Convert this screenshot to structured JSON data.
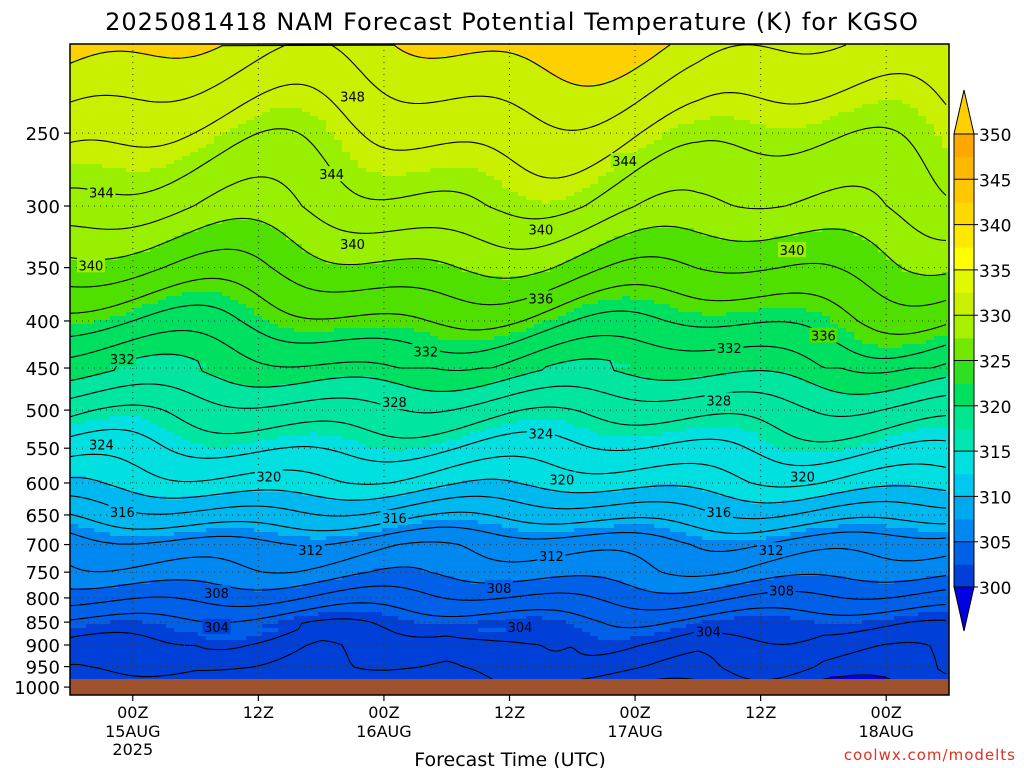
{
  "chart_data": {
    "type": "heatmap",
    "title": "2025081418 NAM Forecast Potential Temperature (K) for KGSO",
    "xlabel": "Forecast Time (UTC)",
    "ylabel": "",
    "x_ticks": [
      {
        "hour": 6,
        "label": "00Z",
        "sub": [
          "15AUG",
          "2025"
        ]
      },
      {
        "hour": 18,
        "label": "12Z",
        "sub": []
      },
      {
        "hour": 30,
        "label": "00Z",
        "sub": [
          "16AUG"
        ]
      },
      {
        "hour": 42,
        "label": "12Z",
        "sub": []
      },
      {
        "hour": 54,
        "label": "00Z",
        "sub": [
          "17AUG"
        ]
      },
      {
        "hour": 66,
        "label": "12Z",
        "sub": []
      },
      {
        "hour": 78,
        "label": "00Z",
        "sub": [
          "18AUG"
        ]
      }
    ],
    "x_range_hours": [
      0,
      84
    ],
    "y_axis": {
      "scale": "log",
      "unit": "hPa",
      "ticks": [
        250,
        300,
        350,
        400,
        450,
        500,
        550,
        600,
        650,
        700,
        750,
        800,
        850,
        900,
        950,
        1000
      ],
      "range": [
        200,
        1020
      ]
    },
    "surface_pressure_hpa": 980,
    "colorbar": {
      "levels": [
        "300",
        "305",
        "310",
        "315",
        "320",
        "325",
        "330",
        "335",
        "340",
        "345",
        "350"
      ],
      "colors": [
        "#0000e0",
        "#0040d8",
        "#0060e8",
        "#0088f0",
        "#00b8f0",
        "#00e0e0",
        "#00e6a0",
        "#00e060",
        "#50e000",
        "#98f000",
        "#c8f000",
        "#ffff00",
        "#ffd000"
      ],
      "extend": "both"
    },
    "contour_interval": 2,
    "profile_by_pressure": [
      {
        "p": 200,
        "theta": 350
      },
      {
        "p": 250,
        "theta": 346
      },
      {
        "p": 300,
        "theta": 343
      },
      {
        "p": 350,
        "theta": 339
      },
      {
        "p": 400,
        "theta": 335
      },
      {
        "p": 450,
        "theta": 331
      },
      {
        "p": 500,
        "theta": 327
      },
      {
        "p": 550,
        "theta": 324
      },
      {
        "p": 600,
        "theta": 321
      },
      {
        "p": 650,
        "theta": 317
      },
      {
        "p": 700,
        "theta": 313
      },
      {
        "p": 750,
        "theta": 311
      },
      {
        "p": 800,
        "theta": 308
      },
      {
        "p": 850,
        "theta": 305
      },
      {
        "p": 900,
        "theta": 303
      },
      {
        "p": 950,
        "theta": 302
      },
      {
        "p": 1000,
        "theta": 300
      }
    ],
    "contour_labels": [
      {
        "value": "348",
        "hour": 27,
        "p": 228
      },
      {
        "value": "344",
        "hour": 25,
        "p": 277
      },
      {
        "value": "344",
        "hour": 53,
        "p": 268
      },
      {
        "value": "344",
        "hour": 3,
        "p": 290
      },
      {
        "value": "340",
        "hour": 45,
        "p": 318
      },
      {
        "value": "340",
        "hour": 27,
        "p": 330
      },
      {
        "value": "340",
        "hour": 2,
        "p": 348
      },
      {
        "value": "340",
        "hour": 69,
        "p": 335
      },
      {
        "value": "336",
        "hour": 45,
        "p": 378
      },
      {
        "value": "336",
        "hour": 72,
        "p": 415
      },
      {
        "value": "332",
        "hour": 5,
        "p": 440
      },
      {
        "value": "332",
        "hour": 34,
        "p": 432
      },
      {
        "value": "332",
        "hour": 63,
        "p": 428
      },
      {
        "value": "328",
        "hour": 31,
        "p": 490
      },
      {
        "value": "328",
        "hour": 62,
        "p": 488
      },
      {
        "value": "324",
        "hour": 45,
        "p": 530
      },
      {
        "value": "324",
        "hour": 3,
        "p": 545
      },
      {
        "value": "320",
        "hour": 19,
        "p": 590
      },
      {
        "value": "320",
        "hour": 47,
        "p": 595
      },
      {
        "value": "320",
        "hour": 70,
        "p": 590
      },
      {
        "value": "316",
        "hour": 5,
        "p": 645
      },
      {
        "value": "316",
        "hour": 31,
        "p": 655
      },
      {
        "value": "316",
        "hour": 62,
        "p": 645
      },
      {
        "value": "312",
        "hour": 23,
        "p": 710
      },
      {
        "value": "312",
        "hour": 46,
        "p": 720
      },
      {
        "value": "312",
        "hour": 67,
        "p": 710
      },
      {
        "value": "308",
        "hour": 14,
        "p": 790
      },
      {
        "value": "308",
        "hour": 41,
        "p": 780
      },
      {
        "value": "308",
        "hour": 68,
        "p": 785
      },
      {
        "value": "304",
        "hour": 14,
        "p": 860
      },
      {
        "value": "304",
        "hour": 43,
        "p": 860
      },
      {
        "value": "304",
        "hour": 61,
        "p": 870
      }
    ],
    "grid": true,
    "legend": "right colorbar",
    "footer": "coolwx.com/modelts"
  }
}
